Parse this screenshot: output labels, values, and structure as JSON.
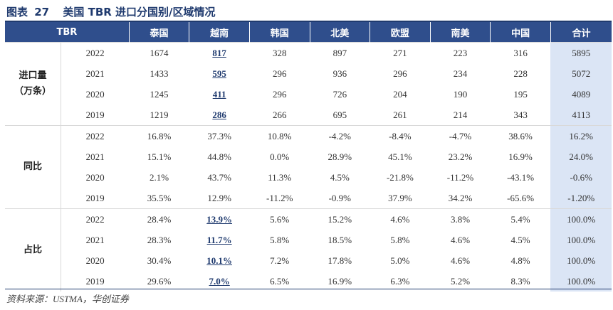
{
  "figure": {
    "label": "图表",
    "number": "27",
    "title": "美国 TBR 进口分国别/区域情况"
  },
  "table": {
    "headers": [
      "TBR",
      "",
      "泰国",
      "越南",
      "韩国",
      "北美",
      "欧盟",
      "南美",
      "中国",
      "合计"
    ],
    "sections": [
      {
        "group": "进口量\n（万条）",
        "rows": [
          {
            "year": "2022",
            "values": [
              "1674",
              "817",
              "328",
              "897",
              "271",
              "223",
              "316"
            ],
            "total": "5895"
          },
          {
            "year": "2021",
            "values": [
              "1433",
              "595",
              "296",
              "936",
              "296",
              "234",
              "228"
            ],
            "total": "5072"
          },
          {
            "year": "2020",
            "values": [
              "1245",
              "411",
              "296",
              "726",
              "204",
              "190",
              "195"
            ],
            "total": "4089"
          },
          {
            "year": "2019",
            "values": [
              "1219",
              "286",
              "266",
              "695",
              "261",
              "214",
              "343"
            ],
            "total": "4113"
          }
        ]
      },
      {
        "group": "同比",
        "rows": [
          {
            "year": "2022",
            "values": [
              "16.8%",
              "37.3%",
              "10.8%",
              "-4.2%",
              "-8.4%",
              "-4.7%",
              "38.6%"
            ],
            "total": "16.2%"
          },
          {
            "year": "2021",
            "values": [
              "15.1%",
              "44.8%",
              "0.0%",
              "28.9%",
              "45.1%",
              "23.2%",
              "16.9%"
            ],
            "total": "24.0%"
          },
          {
            "year": "2020",
            "values": [
              "2.1%",
              "43.7%",
              "11.3%",
              "4.5%",
              "-21.8%",
              "-11.2%",
              "-43.1%"
            ],
            "total": "-0.6%"
          },
          {
            "year": "2019",
            "values": [
              "35.5%",
              "12.9%",
              "-11.2%",
              "-0.9%",
              "37.9%",
              "34.2%",
              "-65.6%"
            ],
            "total": "-1.20%"
          }
        ]
      },
      {
        "group": "占比",
        "rows": [
          {
            "year": "2022",
            "values": [
              "28.4%",
              "13.9%",
              "5.6%",
              "15.2%",
              "4.6%",
              "3.8%",
              "5.4%"
            ],
            "total": "100.0%"
          },
          {
            "year": "2021",
            "values": [
              "28.3%",
              "11.7%",
              "5.8%",
              "18.5%",
              "5.8%",
              "4.6%",
              "4.5%"
            ],
            "total": "100.0%"
          },
          {
            "year": "2020",
            "values": [
              "30.4%",
              "10.1%",
              "7.2%",
              "17.8%",
              "5.0%",
              "4.6%",
              "4.8%"
            ],
            "total": "100.0%"
          },
          {
            "year": "2019",
            "values": [
              "29.6%",
              "7.0%",
              "6.5%",
              "16.9%",
              "6.3%",
              "5.2%",
              "8.3%"
            ],
            "total": "100.0%"
          }
        ]
      }
    ],
    "highlight": {
      "column_index": 1,
      "section_indices": [
        0,
        2
      ]
    }
  },
  "source": "资料来源：USTMA，华创证券",
  "colors": {
    "header_bg": "#2f4e8c",
    "total_bg": "#dbe5f5",
    "title": "#1f3a6e"
  }
}
